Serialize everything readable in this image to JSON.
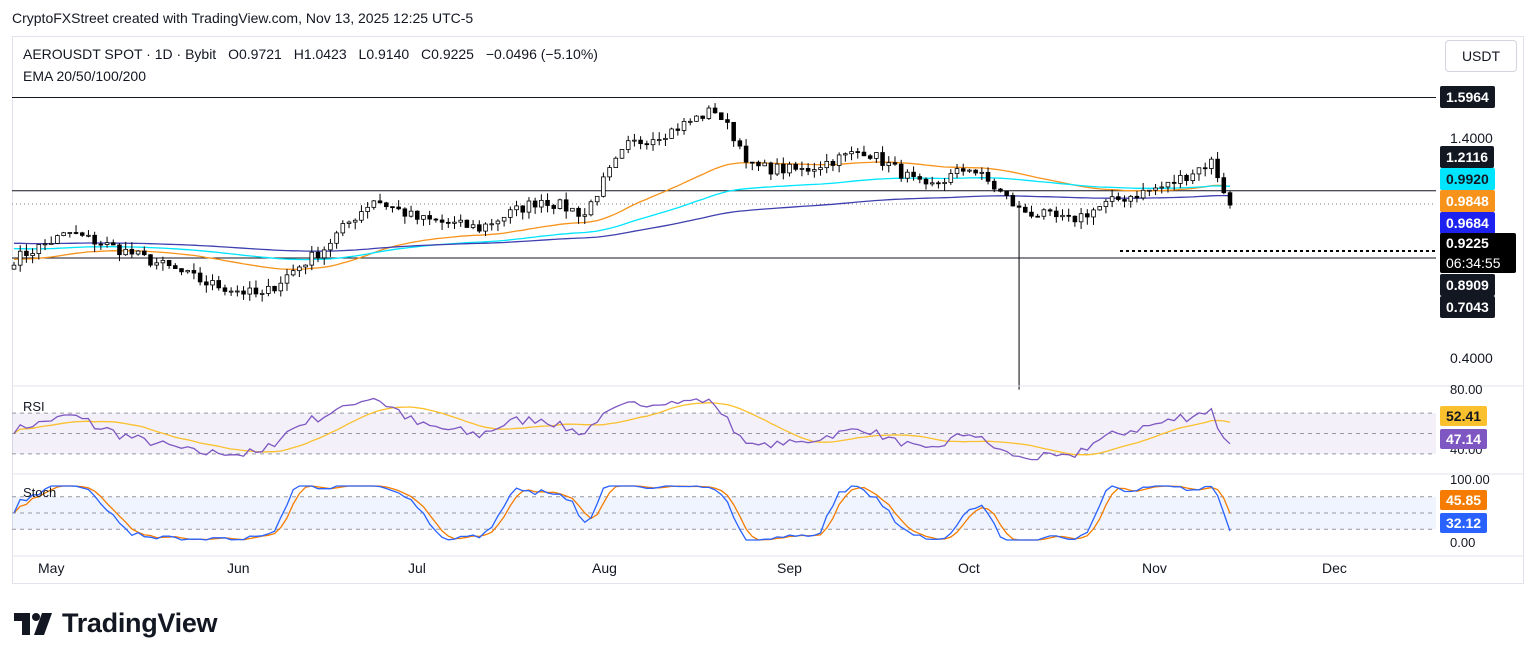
{
  "credit": "CryptoFXStreet created with TradingView.com, Nov 13, 2025 12:25 UTC-5",
  "legend": {
    "symbol": "AEROUSDT SPOT · 1D · Bybit",
    "open": "O0.9721",
    "high": "H1.0423",
    "low": "L0.9140",
    "close": "C0.9225",
    "change": "−0.0496 (−5.10%)",
    "indicator": "EMA 20/50/100/200"
  },
  "currency_button": "USDT",
  "price_axis": {
    "ticks": [
      "1.4000",
      "0.4000"
    ],
    "tags": [
      {
        "label": "1.5964",
        "bg": "#131722"
      },
      {
        "label": "1.2116",
        "bg": "#131722"
      },
      {
        "label": "0.9920",
        "bg": "#00e5ff",
        "fg": "#131722"
      },
      {
        "label": "0.9848",
        "bg": "#f7931a"
      },
      {
        "label": "0.9684",
        "bg": "#1e22f0"
      },
      {
        "label": "0.9225",
        "bg": "#000000"
      },
      {
        "label": "06:34:55",
        "bg": "#000000"
      },
      {
        "label": "0.8909",
        "bg": "#131722"
      },
      {
        "label": "0.7043",
        "bg": "#131722"
      }
    ]
  },
  "x_axis": [
    "May",
    "Jun",
    "Jul",
    "Aug",
    "Sep",
    "Oct",
    "Nov",
    "Dec"
  ],
  "rsi": {
    "label": "RSI",
    "ticks": [
      "80.00",
      "40.00"
    ],
    "tags": [
      {
        "label": "52.41",
        "bg": "#fbc02d",
        "fg": "#131722"
      },
      {
        "label": "47.14",
        "bg": "#7e57c2"
      }
    ]
  },
  "stoch": {
    "label": "Stoch",
    "ticks": [
      "100.00",
      "0.00"
    ],
    "tags": [
      {
        "label": "45.85",
        "bg": "#f57c00"
      },
      {
        "label": "32.12",
        "bg": "#2962ff"
      }
    ]
  },
  "brand": "TradingView",
  "colors": {
    "up": "#ffffff",
    "down": "#000000",
    "ema20": "#00e5ff",
    "ema50": "#f7931a",
    "ema100": "#3f3fb0",
    "rsi_line": "#7e57c2",
    "rsi_ma": "#fbc02d",
    "stoch_k": "#2962ff",
    "stoch_d": "#f57c00"
  },
  "chart_data": {
    "type": "candlestick",
    "symbol": "AEROUSDT",
    "timeframe": "1D",
    "x_labels": [
      "May",
      "Jun",
      "Jul",
      "Aug",
      "Sep",
      "Oct",
      "Nov",
      "Dec"
    ],
    "horizontal_levels": [
      1.5964,
      0.992,
      0.7043
    ],
    "current_price": 0.9225,
    "close_path": [
      {
        "date": "May 1",
        "close": 0.7
      },
      {
        "date": "May 10",
        "close": 0.8
      },
      {
        "date": "May 20",
        "close": 0.72
      },
      {
        "date": "Jun 1",
        "close": 0.62
      },
      {
        "date": "Jun 10",
        "close": 0.58
      },
      {
        "date": "Jun 20",
        "close": 0.74
      },
      {
        "date": "Jun 28",
        "close": 0.95
      },
      {
        "date": "Jul 5",
        "close": 0.86
      },
      {
        "date": "Jul 15",
        "close": 0.82
      },
      {
        "date": "Jul 25",
        "close": 0.95
      },
      {
        "date": "Aug 1",
        "close": 0.88
      },
      {
        "date": "Aug 8",
        "close": 1.25
      },
      {
        "date": "Aug 15",
        "close": 1.35
      },
      {
        "date": "Aug 22",
        "close": 1.5
      },
      {
        "date": "Aug 28",
        "close": 1.12
      },
      {
        "date": "Sep 5",
        "close": 1.1
      },
      {
        "date": "Sep 15",
        "close": 1.22
      },
      {
        "date": "Sep 25",
        "close": 1.0
      },
      {
        "date": "Oct 2",
        "close": 1.12
      },
      {
        "date": "Oct 10",
        "close": 0.9
      },
      {
        "date": "Oct 18",
        "close": 0.85
      },
      {
        "date": "Oct 26",
        "close": 0.95
      },
      {
        "date": "Nov 3",
        "close": 1.02
      },
      {
        "date": "Nov 10",
        "close": 1.15
      },
      {
        "date": "Nov 13",
        "close": 0.9225
      }
    ],
    "ema": [
      {
        "name": "EMA 20",
        "last": 0.992
      },
      {
        "name": "EMA 50",
        "last": 0.9848
      },
      {
        "name": "EMA 100",
        "last": 0.9684
      }
    ],
    "rsi_last": 47.14,
    "rsi_ma_last": 52.41,
    "stoch_k_last": 32.12,
    "stoch_d_last": 45.85
  }
}
